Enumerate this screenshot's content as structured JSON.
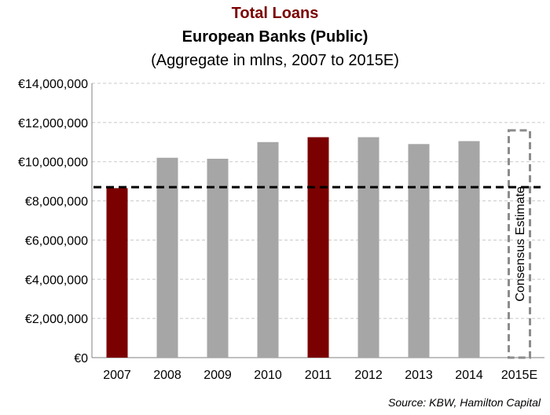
{
  "colors": {
    "title": "#7b0000",
    "highlight_bar": "#7b0000",
    "default_bar": "#a6a6a6",
    "gridline": "#c8c8c8",
    "reference_line": "#000000",
    "estimate_box": "#8c8c8c"
  },
  "chart_data": {
    "type": "bar",
    "title": "Total Loans",
    "subtitle": "European Banks (Public)",
    "note": "(Aggregate in mlns, 2007 to 2015E)",
    "source": "Source: KBW, Hamilton Capital",
    "categories": [
      "2007",
      "2008",
      "2009",
      "2010",
      "2011",
      "2012",
      "2013",
      "2014",
      "2015E"
    ],
    "values": [
      8650000,
      10200000,
      10150000,
      11000000,
      11250000,
      11250000,
      10900000,
      11050000,
      11600000
    ],
    "highlighted": [
      "2007",
      "2011"
    ],
    "estimate_category": "2015E",
    "estimate_label": "Consensus Estimate",
    "reference_line": {
      "value": 8700000,
      "style": "dashed"
    },
    "ylim": [
      0,
      14000000
    ],
    "yticks": [
      0,
      2000000,
      4000000,
      6000000,
      8000000,
      10000000,
      12000000,
      14000000
    ],
    "ytick_labels": [
      "€0",
      "€2,000,000",
      "€4,000,000",
      "€6,000,000",
      "€8,000,000",
      "€10,000,000",
      "€12,000,000",
      "€14,000,000"
    ],
    "grid": true,
    "xlabel": "",
    "ylabel": ""
  }
}
